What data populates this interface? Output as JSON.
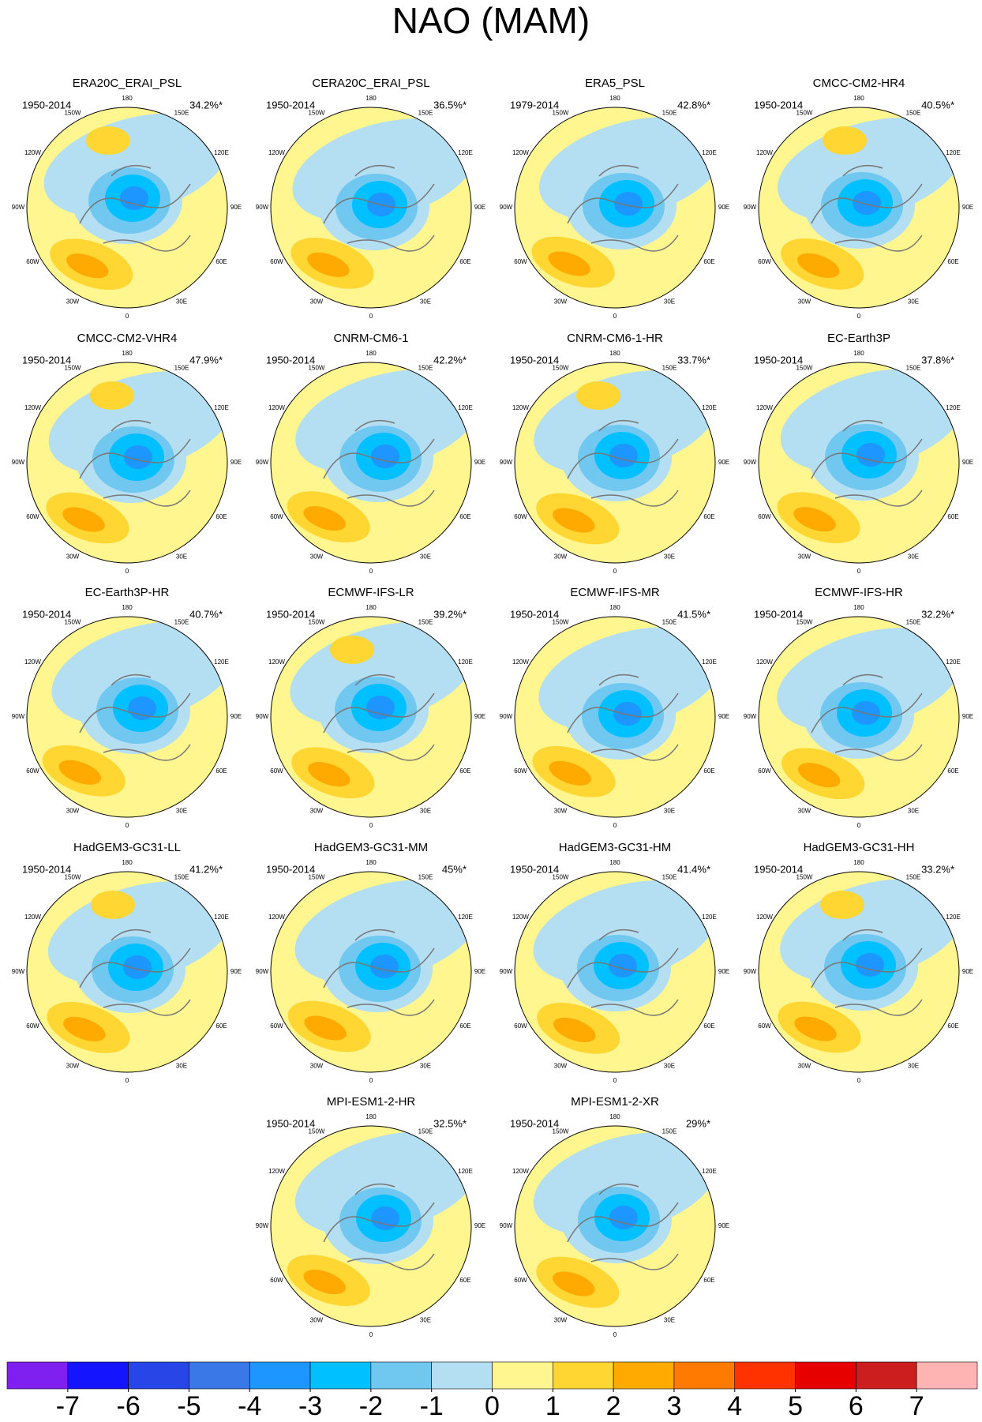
{
  "title": "NAO (MAM)",
  "panels": [
    {
      "name": "ERA20C_ERAI_PSL",
      "period": "1950-2014",
      "variance": "34.2%*"
    },
    {
      "name": "CERA20C_ERAI_PSL",
      "period": "1950-2014",
      "variance": "36.5%*"
    },
    {
      "name": "ERA5_PSL",
      "period": "1979-2014",
      "variance": "42.8%*"
    },
    {
      "name": "CMCC-CM2-HR4",
      "period": "1950-2014",
      "variance": "40.5%*"
    },
    {
      "name": "CMCC-CM2-VHR4",
      "period": "1950-2014",
      "variance": "47.9%*"
    },
    {
      "name": "CNRM-CM6-1",
      "period": "1950-2014",
      "variance": "42.2%*"
    },
    {
      "name": "CNRM-CM6-1-HR",
      "period": "1950-2014",
      "variance": "33.7%*"
    },
    {
      "name": "EC-Earth3P",
      "period": "1950-2014",
      "variance": "37.8%*"
    },
    {
      "name": "EC-Earth3P-HR",
      "period": "1950-2014",
      "variance": "40.7%*"
    },
    {
      "name": "ECMWF-IFS-LR",
      "period": "1950-2014",
      "variance": "39.2%*"
    },
    {
      "name": "ECMWF-IFS-MR",
      "period": "1950-2014",
      "variance": "41.5%*"
    },
    {
      "name": "ECMWF-IFS-HR",
      "period": "1950-2014",
      "variance": "32.2%*"
    },
    {
      "name": "HadGEM3-GC31-LL",
      "period": "1950-2014",
      "variance": "41.2%*"
    },
    {
      "name": "HadGEM3-GC31-MM",
      "period": "1950-2014",
      "variance": "45%*"
    },
    {
      "name": "HadGEM3-GC31-HM",
      "period": "1950-2014",
      "variance": "41.4%*"
    },
    {
      "name": "HadGEM3-GC31-HH",
      "period": "1950-2014",
      "variance": "33.2%*"
    },
    {
      "name": "MPI-ESM1-2-HR",
      "period": "1950-2014",
      "variance": "32.5%*"
    },
    {
      "name": "MPI-ESM1-2-XR",
      "period": "1950-2014",
      "variance": "29%*"
    }
  ],
  "longitude_labels": [
    "180",
    "150E",
    "120E",
    "90E",
    "60E",
    "30E",
    "0",
    "30W",
    "60W",
    "90W",
    "120W",
    "150W"
  ],
  "colorbar": {
    "ticks": [
      -7,
      -6,
      -5,
      -4,
      -3,
      -2,
      -1,
      0,
      1,
      2,
      3,
      4,
      5,
      6,
      7
    ],
    "colors": [
      "#8020f0",
      "#1414ff",
      "#2846e8",
      "#3a78e8",
      "#1e96ff",
      "#00c0ff",
      "#70c8f0",
      "#b4def2",
      "#fff690",
      "#ffd632",
      "#ffaa00",
      "#ff7a00",
      "#ff3200",
      "#e60000",
      "#cc1e1e",
      "#ffb4b4"
    ]
  }
}
